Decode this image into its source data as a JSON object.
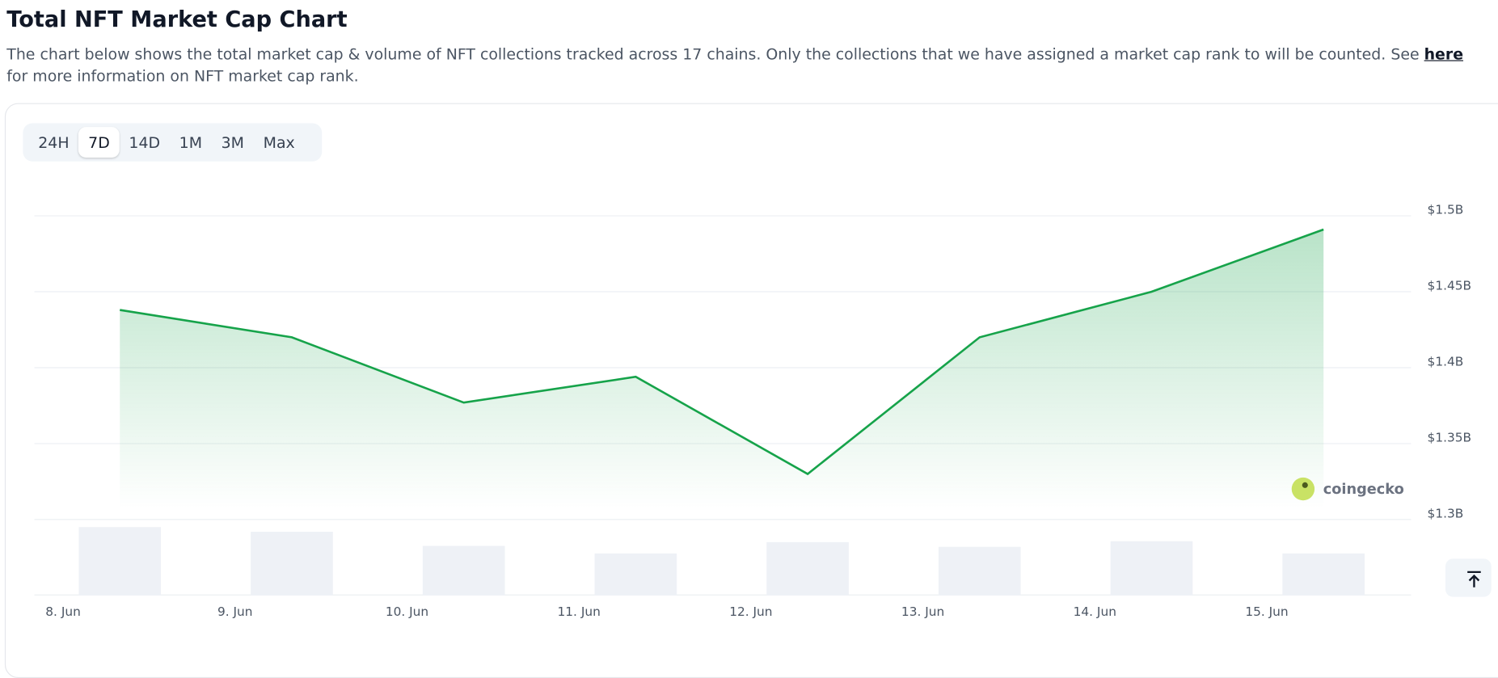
{
  "header": {
    "title": "Total NFT Market Cap Chart",
    "description_before": "The chart below shows the total market cap & volume of NFT collections tracked across 17 chains. Only the collections that we have assigned a market cap rank to will be counted. See ",
    "description_link": "here",
    "description_after": " for more information on NFT market cap rank."
  },
  "range_buttons": [
    "24H",
    "7D",
    "14D",
    "1M",
    "3M",
    "Max"
  ],
  "selected_button": 1,
  "watermark": "coingecko",
  "chart_data": {
    "type": "line",
    "x": [
      8.33,
      9.33,
      10.33,
      11.33,
      12.33,
      13.33,
      14.33,
      15.33
    ],
    "values": [
      1.438,
      1.42,
      1.377,
      1.394,
      1.33,
      1.42,
      1.45,
      1.491
    ],
    "color": "#16a34a",
    "volume_values": [
      72,
      67,
      52,
      44,
      56,
      51,
      57,
      44
    ],
    "volume_color": "#eef1f6",
    "xlim": [
      7.833,
      15.839
    ],
    "xticks": [
      {
        "value": 8,
        "label": "8. Jun"
      },
      {
        "value": 9,
        "label": "9. Jun"
      },
      {
        "value": 10,
        "label": "10. Jun"
      },
      {
        "value": 11,
        "label": "11. Jun"
      },
      {
        "value": 12,
        "label": "12. Jun"
      },
      {
        "value": 13,
        "label": "13. Jun"
      },
      {
        "value": 14,
        "label": "14. Jun"
      },
      {
        "value": 15,
        "label": "15. Jun"
      }
    ],
    "ylim": [
      1.3,
      1.5
    ],
    "yticks": [
      {
        "value": 1.3,
        "label": "$1.3B"
      },
      {
        "value": 1.35,
        "label": "$1.35B"
      },
      {
        "value": 1.4,
        "label": "$1.4B"
      },
      {
        "value": 1.45,
        "label": "$1.45B"
      },
      {
        "value": 1.5,
        "label": "$1.5B"
      }
    ],
    "y2lim": [
      0,
      80
    ],
    "grid": true
  }
}
